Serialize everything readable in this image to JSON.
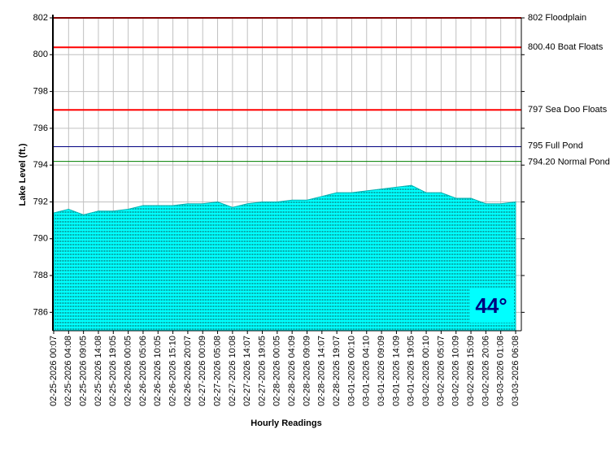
{
  "chart_data": {
    "type": "area",
    "y_label": "Lake Level (ft.)",
    "x_label": "Hourly Readings",
    "categories": [
      "02-25-2026 00:07",
      "02-25-2026 04:08",
      "02-25-2026 09:05",
      "02-25-2026 14:08",
      "02-25-2026 19:05",
      "02-26-2026 00:05",
      "02-26-2026 05:06",
      "02-26-2026 10:05",
      "02-26-2026 15:10",
      "02-26-2026 20:07",
      "02-27-2026 00:09",
      "02-27-2026 05:08",
      "02-27-2026 10:08",
      "02-27-2026 14:07",
      "02-27-2026 19:05",
      "02-28-2026 00:05",
      "02-28-2026 04:09",
      "02-28-2026 09:09",
      "02-28-2026 14:07",
      "02-28-2026 19:07",
      "03-01-2026 00:10",
      "03-01-2026 04:10",
      "03-01-2026 09:09",
      "03-01-2026 14:09",
      "03-01-2026 19:05",
      "03-02-2026 00:10",
      "03-02-2026 05:07",
      "03-02-2026 10:09",
      "03-02-2026 15:09",
      "03-02-2026 20:06",
      "03-03-2026 01:08",
      "03-03-2026 06:08"
    ],
    "series": [
      {
        "name": "Lake Level",
        "color": "#00ffff",
        "values": [
          791.4,
          791.6,
          791.3,
          791.5,
          791.5,
          791.6,
          791.8,
          791.8,
          791.8,
          791.9,
          791.9,
          792.0,
          791.7,
          791.9,
          792.0,
          792.0,
          792.1,
          792.1,
          792.3,
          792.5,
          792.5,
          792.6,
          792.7,
          792.8,
          792.9,
          792.5,
          792.5,
          792.2,
          792.2,
          791.9,
          791.9,
          792.0
        ]
      }
    ],
    "ylim": [
      785,
      802
    ],
    "yticks": [
      786,
      788,
      790,
      792,
      794,
      796,
      798,
      800,
      802
    ],
    "grid": true,
    "reference_lines": [
      {
        "value": 802,
        "label": "802 Floodplain",
        "color": "#ff0000"
      },
      {
        "value": 800.4,
        "label": "800.40 Boat Floats",
        "color": "#ff0000"
      },
      {
        "value": 797,
        "label": "797 Sea Doo Floats",
        "color": "#ff0000"
      },
      {
        "value": 795,
        "label": "795 Full Pond",
        "color": "#000080"
      },
      {
        "value": 794.2,
        "label": "794.20 Normal Pond",
        "color": "#008000"
      }
    ],
    "temperature": "44°"
  }
}
